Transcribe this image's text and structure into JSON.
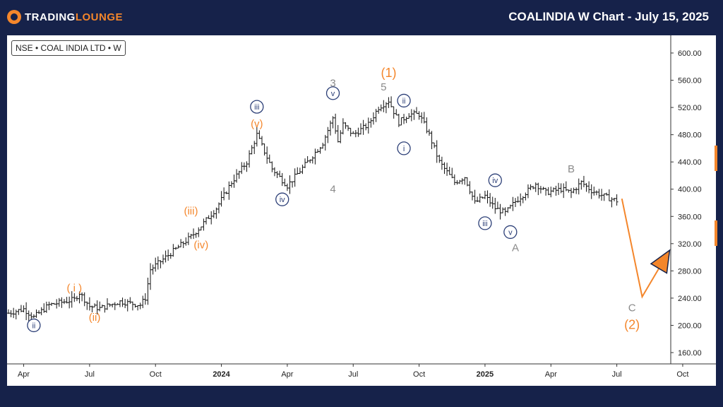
{
  "header": {
    "logo_text_1": "TRADING",
    "logo_text_2": "LOUNGE",
    "title": "COALINDIA W Chart - July 15, 2025"
  },
  "symbol_label": "NSE • COAL INDIA LTD • W",
  "colors": {
    "orange": "#f4862b",
    "navy": "#2c3f77",
    "gray": "#8a8a8a",
    "background": "#16224a"
  },
  "chart_data": {
    "type": "candlestick",
    "y_ticks": [
      "600.00",
      "560.00",
      "520.00",
      "480.00",
      "440.00",
      "400.00",
      "360.00",
      "320.00",
      "280.00",
      "240.00",
      "200.00",
      "160.00"
    ],
    "y_tick_values": [
      600,
      560,
      520,
      480,
      440,
      400,
      360,
      320,
      280,
      240,
      200,
      160
    ],
    "ylim": [
      140,
      610
    ],
    "x_ticks": [
      {
        "label": "Apr",
        "t": 3
      },
      {
        "label": "Jul",
        "t": 16
      },
      {
        "label": "Oct",
        "t": 29
      },
      {
        "label": "2024",
        "t": 42,
        "bold": true
      },
      {
        "label": "Apr",
        "t": 55
      },
      {
        "label": "Jul",
        "t": 68
      },
      {
        "label": "Oct",
        "t": 81
      },
      {
        "label": "2025",
        "t": 94,
        "bold": true
      },
      {
        "label": "Apr",
        "t": 107
      },
      {
        "label": "Jul",
        "t": 120
      },
      {
        "label": "Oct",
        "t": 133
      }
    ],
    "series_points": [
      [
        0,
        218
      ],
      [
        3,
        224
      ],
      [
        5,
        212
      ],
      [
        8,
        230
      ],
      [
        13,
        238
      ],
      [
        14,
        248
      ],
      [
        16,
        228
      ],
      [
        18,
        225
      ],
      [
        22,
        235
      ],
      [
        26,
        230
      ],
      [
        27,
        240
      ],
      [
        28,
        282
      ],
      [
        31,
        300
      ],
      [
        36,
        330
      ],
      [
        38,
        346
      ],
      [
        41,
        372
      ],
      [
        44,
        410
      ],
      [
        47,
        440
      ],
      [
        49,
        480
      ],
      [
        52,
        430
      ],
      [
        55,
        405
      ],
      [
        59,
        440
      ],
      [
        62,
        468
      ],
      [
        64,
        505
      ],
      [
        65,
        470
      ],
      [
        66,
        495
      ],
      [
        68,
        480
      ],
      [
        71,
        495
      ],
      [
        73,
        520
      ],
      [
        75,
        530
      ],
      [
        77,
        498
      ],
      [
        79,
        510
      ],
      [
        81,
        510
      ],
      [
        83,
        480
      ],
      [
        85,
        440
      ],
      [
        88,
        410
      ],
      [
        90,
        418
      ],
      [
        92,
        380
      ],
      [
        94,
        390
      ],
      [
        96,
        372
      ],
      [
        98,
        365
      ],
      [
        100,
        382
      ],
      [
        102,
        395
      ],
      [
        104,
        408
      ],
      [
        106,
        395
      ],
      [
        109,
        400
      ],
      [
        111,
        395
      ],
      [
        113,
        410
      ],
      [
        115,
        398
      ],
      [
        118,
        388
      ],
      [
        120,
        383
      ]
    ],
    "forecast": {
      "points": [
        [
          121,
          386
        ],
        [
          125,
          242
        ],
        [
          130,
          305
        ]
      ],
      "color": "#f4862b"
    },
    "wave_labels": [
      {
        "text": "ii",
        "t": 5,
        "p": 200,
        "style": "navy-circle"
      },
      {
        "text": "( i )",
        "t": 13,
        "p": 255,
        "style": "orange"
      },
      {
        "text": "(ii)",
        "t": 17,
        "p": 212,
        "style": "orange"
      },
      {
        "text": "(iii)",
        "t": 36,
        "p": 368,
        "style": "orange"
      },
      {
        "text": "(iv)",
        "t": 38,
        "p": 318,
        "style": "orange"
      },
      {
        "text": "iii",
        "t": 49,
        "p": 521,
        "style": "navy-circle"
      },
      {
        "text": "(v)",
        "t": 49,
        "p": 496,
        "style": "orange"
      },
      {
        "text": "iv",
        "t": 54,
        "p": 385,
        "style": "navy-circle"
      },
      {
        "text": "v",
        "t": 64,
        "p": 541,
        "style": "navy-circle"
      },
      {
        "text": "3",
        "t": 64,
        "p": 556,
        "style": "gray"
      },
      {
        "text": "4",
        "t": 64,
        "p": 400,
        "style": "gray"
      },
      {
        "text": "5",
        "t": 74,
        "p": 550,
        "style": "gray"
      },
      {
        "text": "(1)",
        "t": 75,
        "p": 570,
        "style": "orange-large"
      },
      {
        "text": "ii",
        "t": 78,
        "p": 530,
        "style": "navy-circle"
      },
      {
        "text": "i",
        "t": 78,
        "p": 460,
        "style": "navy-circle"
      },
      {
        "text": "iv",
        "t": 96,
        "p": 413,
        "style": "navy-circle"
      },
      {
        "text": "iii",
        "t": 94,
        "p": 350,
        "style": "navy-circle"
      },
      {
        "text": "v",
        "t": 99,
        "p": 337,
        "style": "navy-circle"
      },
      {
        "text": "A",
        "t": 100,
        "p": 314,
        "style": "gray"
      },
      {
        "text": "B",
        "t": 111,
        "p": 430,
        "style": "gray"
      },
      {
        "text": "C",
        "t": 123,
        "p": 226,
        "style": "gray"
      },
      {
        "text": "(2)",
        "t": 123,
        "p": 200,
        "style": "orange-large"
      }
    ]
  }
}
